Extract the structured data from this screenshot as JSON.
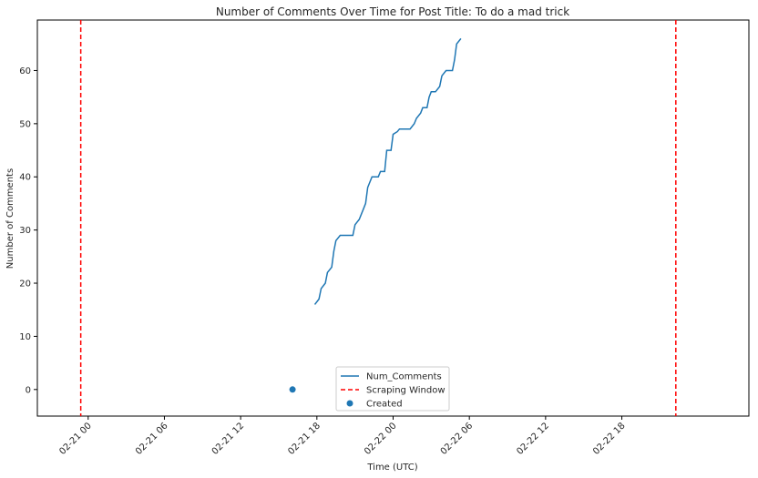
{
  "chart_data": {
    "type": "line",
    "title": "Number of Comments Over Time for Post Title: To do a mad trick",
    "xlabel": "Time (UTC)",
    "ylabel": "Number of Comments",
    "x_axis_type": "datetime",
    "xlim": [
      "2021-02-20T20:00",
      "2021-02-23T04:00"
    ],
    "ylim": [
      -5,
      69.5
    ],
    "x_ticks": [
      {
        "value": "2021-02-21T00:00",
        "label": "02-21 00"
      },
      {
        "value": "2021-02-21T06:00",
        "label": "02-21 06"
      },
      {
        "value": "2021-02-21T12:00",
        "label": "02-21 12"
      },
      {
        "value": "2021-02-21T18:00",
        "label": "02-21 18"
      },
      {
        "value": "2021-02-22T00:00",
        "label": "02-22 00"
      },
      {
        "value": "2021-02-22T06:00",
        "label": "02-22 06"
      },
      {
        "value": "2021-02-22T12:00",
        "label": "02-22 12"
      },
      {
        "value": "2021-02-22T18:00",
        "label": "02-22 18"
      }
    ],
    "y_ticks": [
      0,
      10,
      20,
      30,
      40,
      50,
      60
    ],
    "grid": false,
    "legend_position": "bottom-center",
    "series": [
      {
        "name": "Num_Comments",
        "kind": "line",
        "color": "#1f77b4",
        "points": [
          [
            "2021-02-21T17:50",
            16
          ],
          [
            "2021-02-21T18:10",
            17
          ],
          [
            "2021-02-21T18:20",
            19
          ],
          [
            "2021-02-21T18:40",
            20
          ],
          [
            "2021-02-21T18:50",
            22
          ],
          [
            "2021-02-21T19:10",
            23
          ],
          [
            "2021-02-21T19:20",
            26
          ],
          [
            "2021-02-21T19:30",
            28
          ],
          [
            "2021-02-21T19:50",
            29
          ],
          [
            "2021-02-21T20:10",
            29
          ],
          [
            "2021-02-21T20:30",
            29
          ],
          [
            "2021-02-21T20:50",
            29
          ],
          [
            "2021-02-21T21:00",
            31
          ],
          [
            "2021-02-21T21:20",
            32
          ],
          [
            "2021-02-21T21:40",
            34
          ],
          [
            "2021-02-21T21:50",
            35
          ],
          [
            "2021-02-21T22:00",
            38
          ],
          [
            "2021-02-21T22:20",
            40
          ],
          [
            "2021-02-21T22:40",
            40
          ],
          [
            "2021-02-21T22:50",
            40
          ],
          [
            "2021-02-21T23:00",
            41
          ],
          [
            "2021-02-21T23:20",
            41
          ],
          [
            "2021-02-21T23:30",
            45
          ],
          [
            "2021-02-21T23:50",
            45
          ],
          [
            "2021-02-22T00:00",
            48
          ],
          [
            "2021-02-22T00:20",
            48.5
          ],
          [
            "2021-02-22T00:30",
            49
          ],
          [
            "2021-02-22T00:50",
            49
          ],
          [
            "2021-02-22T01:00",
            49
          ],
          [
            "2021-02-22T01:20",
            49
          ],
          [
            "2021-02-22T01:40",
            50
          ],
          [
            "2021-02-22T01:50",
            51
          ],
          [
            "2021-02-22T02:10",
            52
          ],
          [
            "2021-02-22T02:20",
            53
          ],
          [
            "2021-02-22T02:40",
            53
          ],
          [
            "2021-02-22T02:50",
            55
          ],
          [
            "2021-02-22T03:00",
            56
          ],
          [
            "2021-02-22T03:20",
            56
          ],
          [
            "2021-02-22T03:40",
            57
          ],
          [
            "2021-02-22T03:50",
            59
          ],
          [
            "2021-02-22T04:10",
            60
          ],
          [
            "2021-02-22T04:20",
            60
          ],
          [
            "2021-02-22T04:40",
            60
          ],
          [
            "2021-02-22T04:50",
            62
          ],
          [
            "2021-02-22T05:00",
            65
          ],
          [
            "2021-02-22T05:20",
            66
          ]
        ]
      },
      {
        "name": "Scraping Window",
        "kind": "vlines",
        "color": "#ff0000",
        "dash": true,
        "x": [
          "2021-02-20T23:25",
          "2021-02-22T22:15"
        ]
      },
      {
        "name": "Created",
        "kind": "scatter",
        "color": "#1f77b4",
        "points": [
          [
            "2021-02-21T16:05",
            0
          ]
        ]
      }
    ]
  }
}
